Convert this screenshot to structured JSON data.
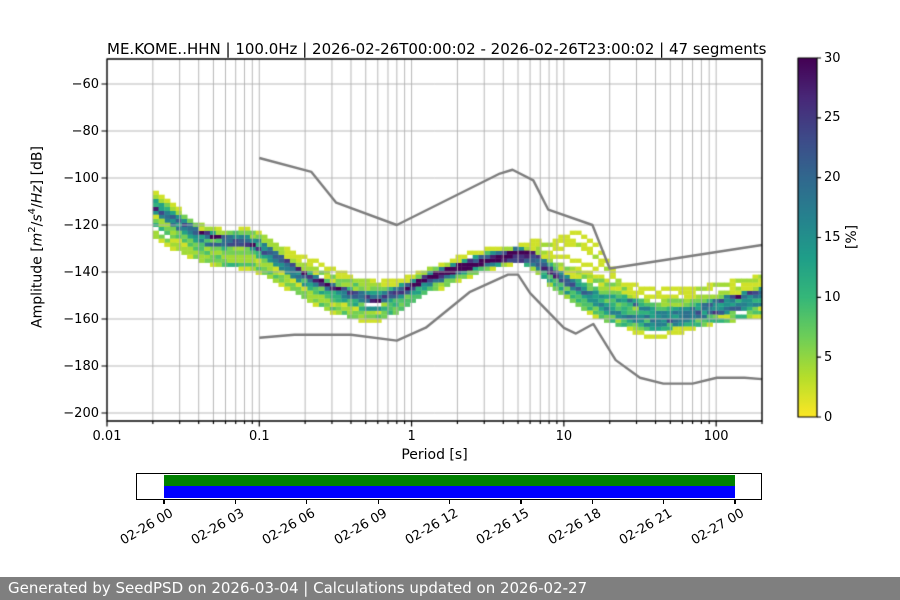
{
  "title": "ME.KOME..HHN | 100.0Hz | 2026-02-26T00:00:02 - 2026-02-26T23:00:02 | 47 segments",
  "axes": {
    "xlabel": "Period [s]",
    "ylabel_parts": {
      "prefix": "Amplitude [",
      "m": "m",
      "m_exp": "2",
      "slash1": "/",
      "s": "s",
      "s_exp": "4",
      "slash2": "/",
      "hz": "Hz",
      "suffix": "] [dB]"
    },
    "xticks": [
      {
        "value": 0.01,
        "label": "0.01"
      },
      {
        "value": 0.1,
        "label": "0.1"
      },
      {
        "value": 1,
        "label": "1"
      },
      {
        "value": 10,
        "label": "10"
      },
      {
        "value": 100,
        "label": "100"
      }
    ],
    "yticks": [
      {
        "value": -60,
        "label": "−60"
      },
      {
        "value": -80,
        "label": "−80"
      },
      {
        "value": -100,
        "label": "−100"
      },
      {
        "value": -120,
        "label": "−120"
      },
      {
        "value": -140,
        "label": "−140"
      },
      {
        "value": -160,
        "label": "−160"
      },
      {
        "value": -180,
        "label": "−180"
      },
      {
        "value": -200,
        "label": "−200"
      }
    ]
  },
  "colorbar": {
    "label": "[%]",
    "min": 0,
    "max": 30,
    "ticks": [
      {
        "value": 0,
        "label": "0"
      },
      {
        "value": 5,
        "label": "5"
      },
      {
        "value": 10,
        "label": "10"
      },
      {
        "value": 15,
        "label": "15"
      },
      {
        "value": 20,
        "label": "20"
      },
      {
        "value": 25,
        "label": "25"
      },
      {
        "value": 30,
        "label": "30"
      }
    ]
  },
  "timeline": {
    "tick_labels": [
      "02-26 00",
      "02-26 03",
      "02-26 06",
      "02-26 09",
      "02-26 12",
      "02-26 15",
      "02-26 18",
      "02-26 21",
      "02-27 00"
    ],
    "bar_colors": [
      "#008000",
      "#0000ff"
    ]
  },
  "footer": {
    "text": "Generated by SeedPSD on 2026-03-04 | Calculations updated on 2026-02-27",
    "bg": "#7f7f7f",
    "fg": "#ffffff"
  },
  "colors": {
    "grid": "#b0b0b0",
    "axis": "#000000",
    "noise_models": "#7d7d7d",
    "viridis": [
      "#440154",
      "#482878",
      "#3e4a89",
      "#31688e",
      "#26828e",
      "#1f9e89",
      "#35b779",
      "#6ece58",
      "#b5de2b",
      "#fde725"
    ]
  },
  "chart_data": {
    "type": "heatmap",
    "title": "ME.KOME..HHN | 100.0Hz | 2026-02-26T00:00:02 - 2026-02-26T23:00:02 | 47 segments",
    "station": "ME.KOME..HHN",
    "sampling_rate": "100.0Hz",
    "time_range": "2026-02-26T00:00:02 - 2026-02-26T23:00:02",
    "segments": 47,
    "xlabel": "Period [s]",
    "ylabel": "Amplitude [m2/s4/Hz] [dB]",
    "x_scale": "log",
    "xlim": [
      0.01,
      200
    ],
    "ylim": [
      -203,
      -49
    ],
    "grid": true,
    "colorbar_label": "[%]",
    "colorbar_range": [
      0,
      30
    ],
    "period_bin_decades": 0.0375,
    "db_bin_height": 1.7,
    "psd_center": [
      [
        0.02,
        -113
      ],
      [
        0.028,
        -119
      ],
      [
        0.04,
        -125.5
      ],
      [
        0.06,
        -128.5
      ],
      [
        0.08,
        -128
      ],
      [
        0.1,
        -130.5
      ],
      [
        0.2,
        -142.5
      ],
      [
        0.3,
        -148
      ],
      [
        0.45,
        -151.5
      ],
      [
        0.6,
        -152.5
      ],
      [
        0.8,
        -150.5
      ],
      [
        1,
        -147
      ],
      [
        1.3,
        -143
      ],
      [
        2,
        -138.5
      ],
      [
        3,
        -135
      ],
      [
        5,
        -132.5
      ],
      [
        6.5,
        -134.5
      ],
      [
        8,
        -140
      ],
      [
        10,
        -144.5
      ],
      [
        13,
        -149
      ],
      [
        18,
        -154
      ],
      [
        25,
        -157.5
      ],
      [
        40,
        -161
      ],
      [
        60,
        -159.5
      ],
      [
        100,
        -156
      ],
      [
        140,
        -153.5
      ],
      [
        200,
        -151.5
      ]
    ],
    "psd_spread": [
      [
        0.02,
        8,
        10
      ],
      [
        0.04,
        7,
        9
      ],
      [
        0.08,
        7,
        10
      ],
      [
        0.15,
        7,
        9
      ],
      [
        0.3,
        9.5,
        9
      ],
      [
        0.5,
        10,
        8.5
      ],
      [
        0.8,
        8,
        7
      ],
      [
        1.2,
        4.5,
        4
      ],
      [
        2,
        3.5,
        3
      ],
      [
        5,
        2.8,
        2.5
      ],
      [
        8,
        5,
        4
      ],
      [
        12,
        8,
        5
      ],
      [
        20,
        12,
        6
      ],
      [
        30,
        14,
        5.5
      ],
      [
        60,
        13,
        5
      ],
      [
        100,
        12,
        5
      ],
      [
        200,
        12,
        6
      ]
    ],
    "outliers": {
      "period": 14,
      "sigma_decades": 0.2,
      "amplitudes_db": [
        25,
        21,
        17,
        13,
        9,
        6
      ]
    },
    "noise_model_high": [
      [
        0.1,
        -91.5
      ],
      [
        0.22,
        -97.4
      ],
      [
        0.32,
        -110.5
      ],
      [
        0.8,
        -120
      ],
      [
        3.8,
        -98.1
      ],
      [
        4.6,
        -96.5
      ],
      [
        6.3,
        -101
      ],
      [
        7.9,
        -113.5
      ],
      [
        15.4,
        -120
      ],
      [
        20,
        -138.5
      ],
      [
        200,
        -128.5
      ]
    ],
    "noise_model_low": [
      [
        0.1,
        -168
      ],
      [
        0.17,
        -166.7
      ],
      [
        0.4,
        -166.7
      ],
      [
        0.8,
        -169.2
      ],
      [
        1.24,
        -163.7
      ],
      [
        2.4,
        -148.6
      ],
      [
        4.3,
        -141.1
      ],
      [
        5,
        -141.1
      ],
      [
        6,
        -149
      ],
      [
        10,
        -163.8
      ],
      [
        12,
        -166.2
      ],
      [
        15.6,
        -162.1
      ],
      [
        21.9,
        -177.5
      ],
      [
        31.6,
        -185
      ],
      [
        45,
        -187.5
      ],
      [
        70,
        -187.5
      ],
      [
        101,
        -185
      ],
      [
        154,
        -185
      ],
      [
        200,
        -185.6
      ]
    ]
  }
}
